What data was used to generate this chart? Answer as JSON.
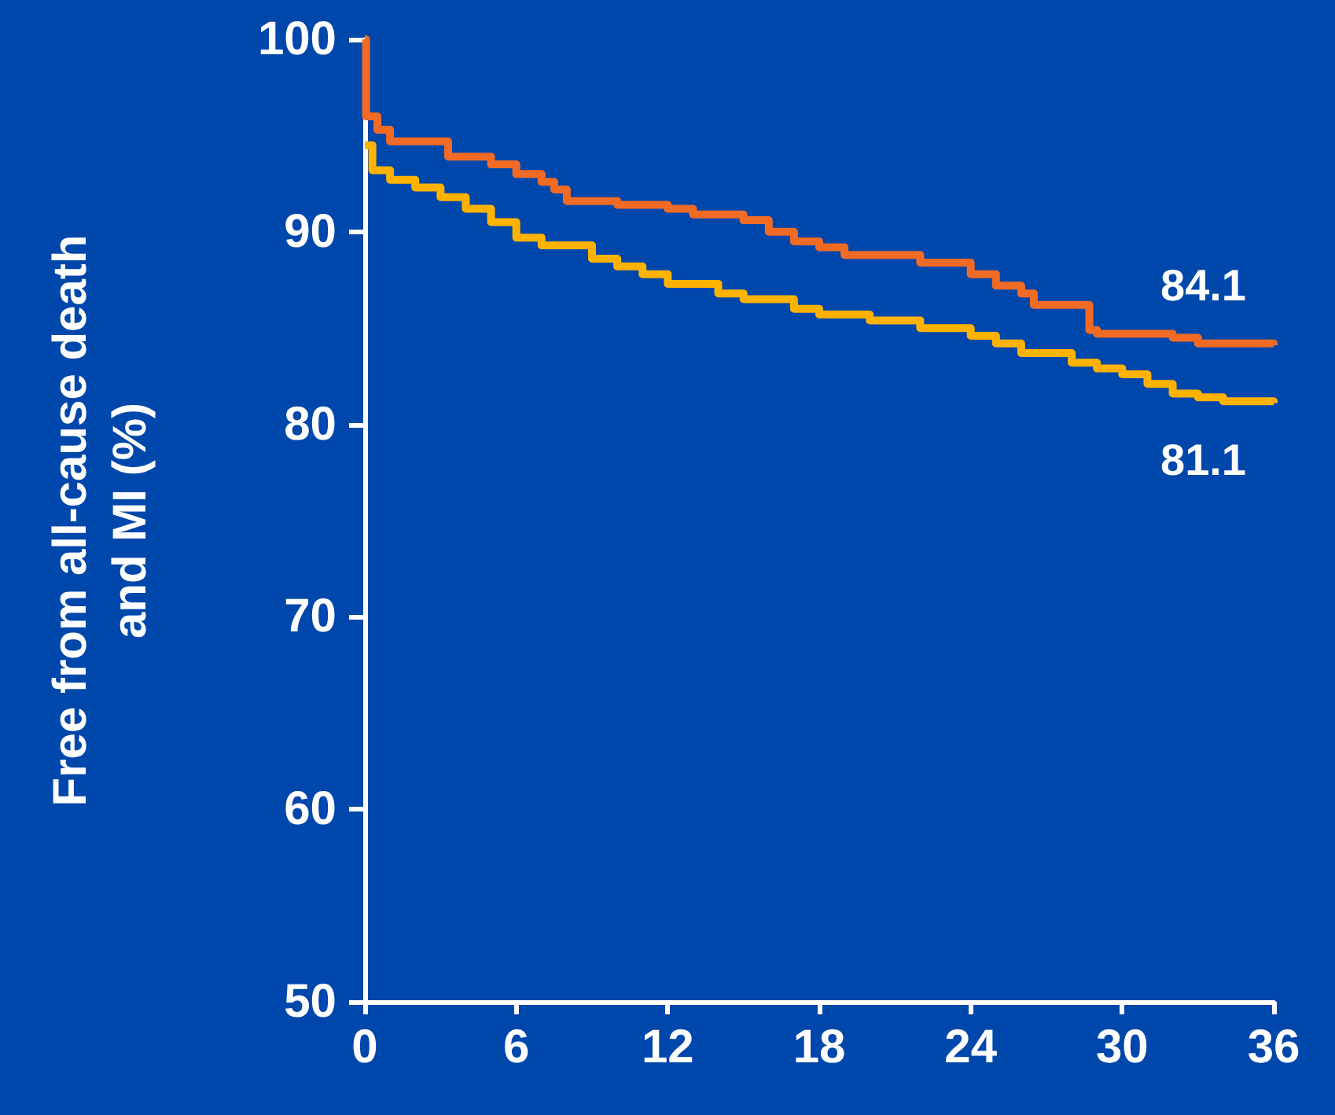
{
  "chart_data": {
    "type": "step",
    "ylabel": "Free from all-cause death\nand MI (%)",
    "xlim": [
      0,
      36
    ],
    "xticks": [
      0,
      6,
      12,
      18,
      24,
      30,
      36
    ],
    "ylim": [
      50,
      100
    ],
    "yticks": [
      50,
      60,
      70,
      80,
      90,
      100
    ],
    "grid": false,
    "marker": "none",
    "line_style": "solid",
    "series": [
      {
        "color": "#f26b25",
        "x": [
          0,
          0.05,
          0.5,
          1,
          3,
          3.3,
          5,
          6,
          7,
          7.5,
          8,
          10,
          12,
          13,
          15,
          16,
          17,
          18,
          19,
          22,
          24,
          25,
          26,
          26.5,
          28,
          28.7,
          29,
          32,
          33,
          36
        ],
        "values": [
          100,
          96,
          95.3,
          94.7,
          94.7,
          93.9,
          93.5,
          93,
          92.6,
          92.2,
          91.6,
          91.4,
          91.2,
          90.9,
          90.6,
          90,
          89.5,
          89.2,
          88.8,
          88.4,
          87.8,
          87.2,
          86.8,
          86.2,
          86.2,
          84.9,
          84.7,
          84.5,
          84.2,
          84.1
        ],
        "value_labels": [
          null,
          null,
          null,
          null,
          null,
          null,
          null,
          null,
          null,
          null,
          null,
          null,
          null,
          null,
          null,
          null,
          null,
          null,
          null,
          null,
          null,
          null,
          null,
          null,
          null,
          null,
          null,
          null,
          null,
          "84.1"
        ]
      },
      {
        "color": "#ffb300",
        "x": [
          0,
          0.3,
          1,
          2,
          3,
          4,
          5,
          6,
          7,
          9,
          10,
          11,
          12,
          14,
          15,
          17,
          18,
          20,
          22,
          24,
          25,
          26,
          28,
          29,
          30,
          31,
          32,
          33,
          34,
          36
        ],
        "values": [
          94.5,
          93.2,
          92.7,
          92.3,
          91.8,
          91.2,
          90.5,
          89.7,
          89.3,
          88.6,
          88.2,
          87.8,
          87.3,
          86.8,
          86.5,
          86,
          85.7,
          85.4,
          85,
          84.6,
          84.2,
          83.7,
          83.2,
          82.9,
          82.6,
          82.1,
          81.6,
          81.4,
          81.2,
          81.1
        ],
        "value_labels": [
          null,
          null,
          null,
          null,
          null,
          null,
          null,
          null,
          null,
          null,
          null,
          null,
          null,
          null,
          null,
          null,
          null,
          null,
          null,
          null,
          null,
          null,
          null,
          null,
          null,
          null,
          null,
          null,
          null,
          "81.1"
        ]
      }
    ]
  }
}
